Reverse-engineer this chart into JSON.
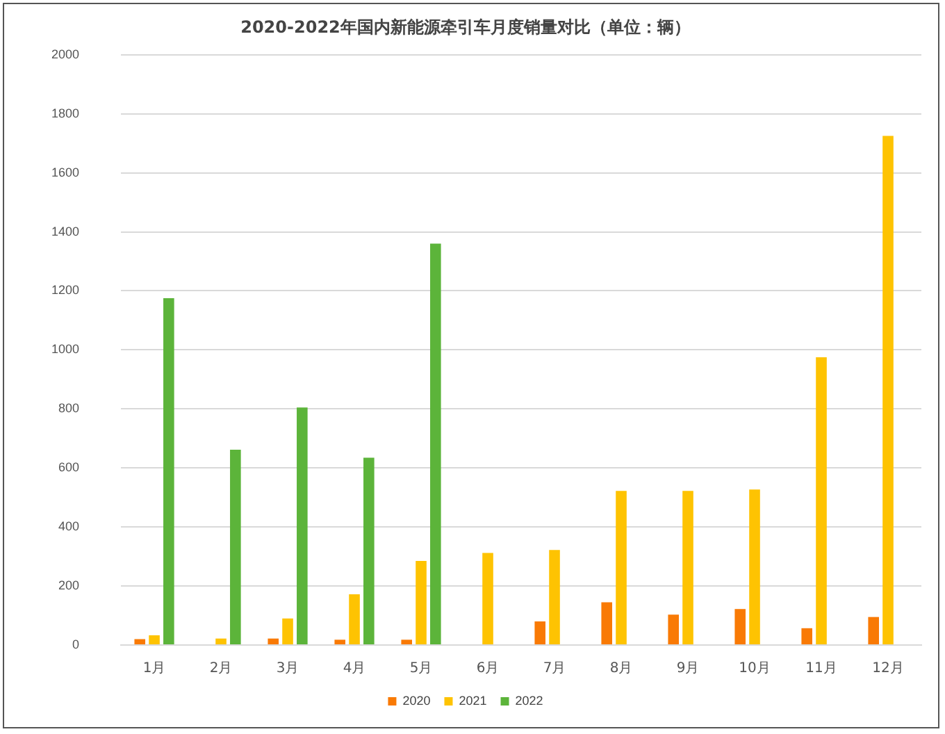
{
  "chart_data": {
    "type": "bar",
    "title": "2020-2022年国内新能源牵引车月度销量对比（单位：辆）",
    "categories": [
      "1月",
      "2月",
      "3月",
      "4月",
      "5月",
      "6月",
      "7月",
      "8月",
      "9月",
      "10月",
      "11月",
      "12月"
    ],
    "series": [
      {
        "name": "2020",
        "color": "#f97a05",
        "values": [
          20,
          null,
          22,
          18,
          18,
          null,
          80,
          145,
          103,
          122,
          57,
          95
        ]
      },
      {
        "name": "2021",
        "color": "#fec302",
        "values": [
          33,
          22,
          90,
          172,
          285,
          312,
          322,
          522,
          522,
          527,
          975,
          1725
        ]
      },
      {
        "name": "2022",
        "color": "#5cb43a",
        "values": [
          1175,
          662,
          805,
          635,
          1360,
          null,
          null,
          null,
          null,
          null,
          null,
          null
        ]
      }
    ],
    "ylim": [
      0,
      2000
    ],
    "yticks": [
      0,
      200,
      400,
      600,
      800,
      1000,
      1200,
      1400,
      1600,
      1800,
      2000
    ],
    "grid": "y",
    "legend": "bottom"
  }
}
